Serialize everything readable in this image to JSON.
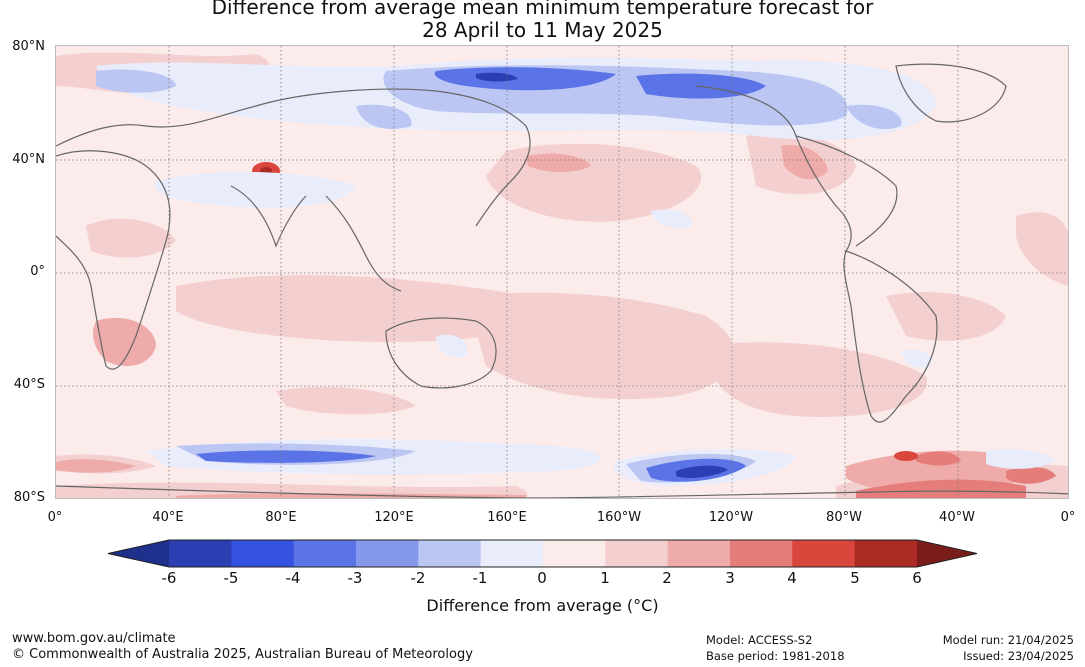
{
  "title_line1": "Difference from average mean minimum temperature forecast for",
  "title_line2": "28 April to 11 May 2025",
  "lat_labels": [
    "80°N",
    "40°N",
    "0°",
    "40°S",
    "80°S"
  ],
  "lon_labels": [
    "0°",
    "40°E",
    "80°E",
    "120°E",
    "160°E",
    "160°W",
    "120°W",
    "80°W",
    "40°W",
    "0°"
  ],
  "colorbar": {
    "title": "Difference from average (°C)",
    "ticks": [
      "-6",
      "-5",
      "-4",
      "-3",
      "-2",
      "-1",
      "0",
      "1",
      "2",
      "3",
      "4",
      "5",
      "6"
    ],
    "colors": [
      "#1f2f8c",
      "#2b3fb3",
      "#3451e0",
      "#5a73e6",
      "#8598ec",
      "#bcc6f3",
      "#e8ecfb",
      "#fbebeb",
      "#f4cfcf",
      "#eeaba9",
      "#e57e7a",
      "#d9463c",
      "#ab2a24",
      "#7a1d1a"
    ],
    "under_color": "#1f2f8c",
    "over_color": "#7a1d1a"
  },
  "footer": {
    "website": "www.bom.gov.au/climate",
    "copyright": "© Commonwealth of Australia 2025, Australian Bureau of Meteorology",
    "model": "Model: ACCESS-S2",
    "base_period": "Base period: 1981-2018",
    "model_run": "Model run: 21/04/2025",
    "issued": "Issued: 23/04/2025"
  }
}
